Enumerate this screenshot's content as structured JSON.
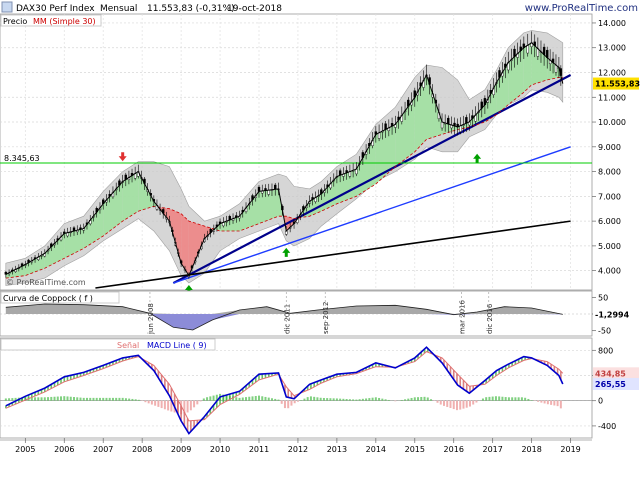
{
  "header": {
    "symbol": "DAX30 Perf Index",
    "period": "Mensual",
    "quote": "11.553,83 (-0,31%)",
    "date": "19-oct-2018",
    "source": "www.ProRealTime.com",
    "watermark": "© ProRealTime.com"
  },
  "colors": {
    "price_line": "#000000",
    "ma_line": "#cc0000",
    "bollinger_fill": "#c8c8c8",
    "green_fill": "#9ee29e",
    "red_fill": "#f08080",
    "trend_blue_dark": "#00008b",
    "trend_blue": "#1e3cff",
    "trend_black": "#000000",
    "level_line": "#00cc00",
    "macd_line": "#0000cc",
    "signal_line": "#e07070",
    "hist_pos": "#80d080",
    "hist_neg": "#f0b0b0",
    "arrow_up": "#00a000",
    "arrow_down": "#e03030"
  },
  "chart_data": [
    {
      "type": "line",
      "panel": "price",
      "legend": [
        "Precio",
        "MM (Simple 30)"
      ],
      "y_ticks": [
        "14.000",
        "13.000",
        "12.000",
        "11.000",
        "10.000",
        "9.000",
        "8.000",
        "7.000",
        "6.000",
        "5.000",
        "4.000"
      ],
      "last_price_label": "11.553,83",
      "level_label": "8.345,63",
      "level": 8345.63,
      "ylim": [
        3300,
        14200
      ],
      "x": [
        2004.5,
        2005.0,
        2005.5,
        2006.0,
        2006.5,
        2007.0,
        2007.5,
        2007.9,
        2008.3,
        2008.7,
        2009.0,
        2009.2,
        2009.6,
        2010.0,
        2010.5,
        2011.0,
        2011.5,
        2011.7,
        2011.9,
        2012.3,
        2012.6,
        2013.0,
        2013.5,
        2014.0,
        2014.5,
        2015.0,
        2015.3,
        2015.7,
        2016.1,
        2016.4,
        2016.8,
        2017.1,
        2017.4,
        2017.8,
        2018.0,
        2018.4,
        2018.7,
        2018.8
      ],
      "close": [
        3850,
        4250,
        4700,
        5500,
        5700,
        6700,
        7600,
        8000,
        6800,
        6000,
        4300,
        3800,
        5300,
        5900,
        6200,
        7200,
        7300,
        5600,
        5900,
        6800,
        7100,
        7800,
        8100,
        9500,
        9900,
        11000,
        11900,
        10000,
        9800,
        10000,
        10700,
        11600,
        12400,
        13000,
        13200,
        12600,
        12200,
        11550
      ],
      "ma30": [
        3700,
        3800,
        4100,
        4500,
        4900,
        5400,
        6000,
        6400,
        6600,
        6500,
        6300,
        6000,
        5800,
        5600,
        5600,
        5900,
        6200,
        6200,
        6100,
        6200,
        6400,
        6700,
        7000,
        7500,
        8200,
        8800,
        9300,
        9500,
        9700,
        9800,
        10000,
        10300,
        10700,
        11200,
        11500,
        11700,
        11800,
        11800
      ],
      "bb_upper": [
        4300,
        4500,
        5000,
        5900,
        6200,
        7200,
        8000,
        8400,
        8400,
        8200,
        7300,
        6600,
        6000,
        6200,
        6700,
        7600,
        7900,
        7800,
        7400,
        7300,
        7600,
        8200,
        8700,
        9900,
        10600,
        11800,
        12300,
        12200,
        11700,
        10900,
        11300,
        12100,
        13000,
        13600,
        13700,
        13600,
        13300,
        13200
      ],
      "bb_lower": [
        3400,
        3500,
        3700,
        4200,
        4600,
        5200,
        5700,
        6100,
        5600,
        4800,
        3800,
        3500,
        3900,
        4800,
        5300,
        5600,
        5900,
        5200,
        5000,
        5300,
        5800,
        6300,
        6900,
        7600,
        8000,
        8500,
        9000,
        8800,
        8800,
        9400,
        9700,
        10300,
        10700,
        11000,
        11300,
        11200,
        11000,
        10800
      ],
      "trendlines": [
        {
          "from": [
            2008.8,
            3500
          ],
          "to": [
            2019.0,
            11900
          ],
          "style": "dark-blue"
        },
        {
          "from": [
            2008.8,
            3500
          ],
          "to": [
            2019.0,
            9000
          ],
          "style": "blue"
        },
        {
          "from": [
            2006.8,
            3300
          ],
          "to": [
            2019.0,
            6000
          ],
          "style": "black"
        }
      ],
      "arrows": [
        {
          "x": 2007.5,
          "y": 8500,
          "dir": "down"
        },
        {
          "x": 2009.2,
          "y": 3500,
          "dir": "up"
        },
        {
          "x": 2011.7,
          "y": 5000,
          "dir": "up"
        },
        {
          "x": 2016.6,
          "y": 8800,
          "dir": "up"
        }
      ]
    },
    {
      "type": "area",
      "panel": "coppock",
      "legend": "Curva de Coppock ( f )",
      "last_value": "-1,2994",
      "y_ticks": [
        "50",
        "0",
        "-50"
      ],
      "ylim": [
        -60,
        60
      ],
      "x": [
        2004.5,
        2005.5,
        2006.5,
        2007.5,
        2008.2,
        2008.8,
        2009.3,
        2009.8,
        2010.5,
        2011.2,
        2011.8,
        2012.5,
        2013.5,
        2014.5,
        2015.3,
        2016.0,
        2016.6,
        2017.3,
        2018.0,
        2018.8
      ],
      "values": [
        20,
        30,
        28,
        22,
        2,
        -40,
        -48,
        -18,
        12,
        22,
        2,
        12,
        24,
        26,
        14,
        -2,
        6,
        22,
        18,
        -1.3
      ],
      "annotations": [
        {
          "x": 2008.2,
          "label": "jun 2008"
        },
        {
          "x": 2011.7,
          "label": "dic 2011"
        },
        {
          "x": 2012.7,
          "label": "sep 2012"
        },
        {
          "x": 2016.2,
          "label": "mar 2016"
        },
        {
          "x": 2016.9,
          "label": "dic 2016"
        }
      ]
    },
    {
      "type": "line",
      "panel": "macd",
      "legend": [
        "Señal",
        "MACD Line ( 9)"
      ],
      "macd_label": "265,55",
      "signal_label": "434,85",
      "y_ticks": [
        "800",
        "400",
        "0",
        "-400"
      ],
      "ylim": [
        -560,
        900
      ],
      "x": [
        2004.5,
        2005.0,
        2005.5,
        2006.0,
        2006.5,
        2007.0,
        2007.5,
        2007.9,
        2008.3,
        2008.7,
        2009.0,
        2009.2,
        2009.6,
        2010.0,
        2010.5,
        2011.0,
        2011.5,
        2011.7,
        2011.9,
        2012.3,
        2012.6,
        2013.0,
        2013.5,
        2014.0,
        2014.5,
        2015.0,
        2015.3,
        2015.7,
        2016.1,
        2016.4,
        2016.8,
        2017.1,
        2017.4,
        2017.8,
        2018.0,
        2018.4,
        2018.7,
        2018.8
      ],
      "macd": [
        -80,
        70,
        200,
        380,
        450,
        560,
        680,
        720,
        480,
        80,
        -320,
        -520,
        -250,
        60,
        150,
        420,
        440,
        60,
        30,
        260,
        330,
        420,
        450,
        600,
        520,
        680,
        850,
        600,
        250,
        120,
        320,
        480,
        580,
        700,
        680,
        560,
        400,
        265
      ],
      "signal": [
        -120,
        10,
        140,
        300,
        400,
        510,
        630,
        700,
        560,
        260,
        -80,
        -320,
        -300,
        -60,
        100,
        330,
        420,
        220,
        80,
        180,
        280,
        380,
        430,
        540,
        530,
        620,
        780,
        680,
        420,
        230,
        260,
        400,
        520,
        640,
        670,
        620,
        500,
        435
      ]
    }
  ],
  "x_axis": {
    "ticks": [
      "2005",
      "2006",
      "2007",
      "2008",
      "2009",
      "2010",
      "2011",
      "2012",
      "2013",
      "2014",
      "2015",
      "2016",
      "2017",
      "2018",
      "2019"
    ],
    "range": [
      2004.35,
      2019.55
    ]
  }
}
